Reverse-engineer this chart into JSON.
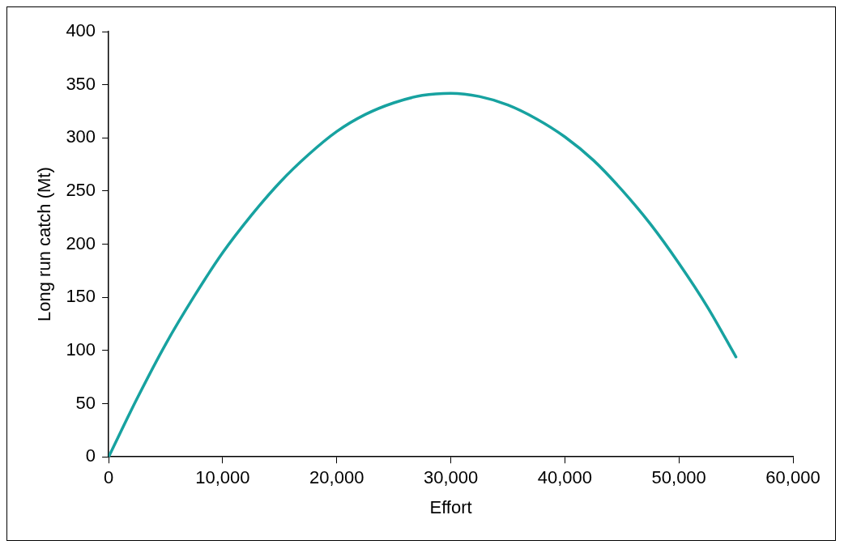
{
  "chart_data": {
    "type": "line",
    "xlabel": "Effort",
    "ylabel": "Long run catch (Mt)",
    "x": [
      0,
      2500,
      5000,
      7500,
      10000,
      12500,
      15000,
      17500,
      20000,
      22500,
      25000,
      27500,
      30000,
      32500,
      35000,
      37500,
      40000,
      42500,
      45000,
      47500,
      50000,
      52500,
      55000
    ],
    "series": [
      {
        "color": "#17a2a0",
        "values": [
          0,
          55,
          106,
          151,
          192,
          227,
          258,
          284,
          306,
          322,
          333,
          340,
          342,
          339,
          331,
          318,
          301,
          279,
          251,
          219,
          182,
          141,
          94
        ]
      }
    ],
    "xlim": [
      0,
      60000
    ],
    "xticks": [
      {
        "value": 0,
        "label": "0"
      },
      {
        "value": 10000,
        "label": "10,000"
      },
      {
        "value": 20000,
        "label": "20,000"
      },
      {
        "value": 30000,
        "label": "30,000"
      },
      {
        "value": 40000,
        "label": "40,000"
      },
      {
        "value": 50000,
        "label": "50,000"
      },
      {
        "value": 60000,
        "label": "60,000"
      }
    ],
    "ylim": [
      0,
      400
    ],
    "yticks": [
      0,
      50,
      100,
      150,
      200,
      250,
      300,
      350,
      400
    ],
    "grid": false,
    "legend": false,
    "marker": "none",
    "line_style": "solid"
  }
}
